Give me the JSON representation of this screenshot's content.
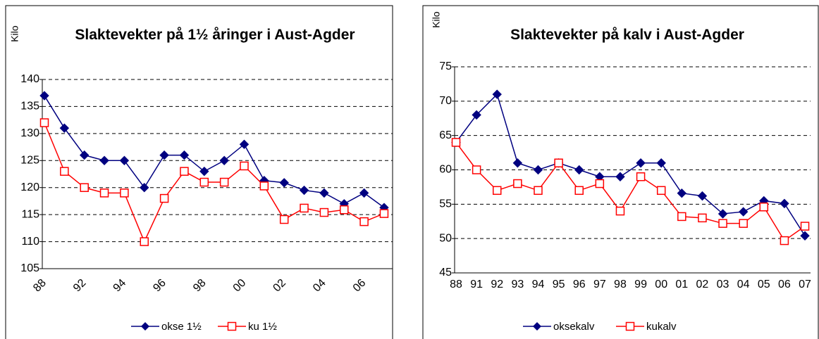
{
  "chart_data": [
    {
      "type": "line",
      "title": "Slaktevekter på 1½ åringer i Aust-Agder",
      "ylabel": "Kilo",
      "categories": [
        "88",
        null,
        "92",
        null,
        "94",
        null,
        "96",
        null,
        "98",
        null,
        "00",
        null,
        "02",
        null,
        "04",
        null,
        "06",
        null
      ],
      "series": [
        {
          "name": "okse 1½",
          "color": "#000080",
          "marker": "diamond",
          "values": [
            137,
            131,
            126,
            125,
            125,
            120,
            126,
            126,
            123,
            125,
            128,
            121.3,
            120.9,
            119.5,
            119,
            117,
            119,
            116.3
          ]
        },
        {
          "name": "ku 1½",
          "color": "#ff0000",
          "marker": "square",
          "values": [
            132,
            123,
            120,
            119,
            119,
            110,
            118,
            123,
            121,
            121,
            124,
            120.3,
            114.1,
            116.2,
            115.4,
            115.9,
            113.7,
            115.2
          ]
        }
      ],
      "ylim": [
        105,
        140
      ],
      "yticks": [
        105,
        110,
        115,
        120,
        125,
        130,
        135,
        140
      ],
      "grid": true,
      "legend": "bottom"
    },
    {
      "type": "line",
      "title": "Slaktevekter på kalv i Aust-Agder",
      "ylabel": "Kilo",
      "categories": [
        "88",
        "91",
        "92",
        "93",
        "94",
        "95",
        "96",
        "97",
        "98",
        "99",
        "00",
        "01",
        "02",
        "03",
        "04",
        "05",
        "06",
        "07"
      ],
      "series": [
        {
          "name": "oksekalv",
          "color": "#000080",
          "marker": "diamond",
          "values": [
            64,
            68,
            71,
            61,
            60,
            61,
            60,
            59,
            59,
            61,
            61,
            56.6,
            56.2,
            53.6,
            53.9,
            55.5,
            55.1,
            50.4
          ]
        },
        {
          "name": "kukalv",
          "color": "#ff0000",
          "marker": "square",
          "values": [
            64,
            60,
            57,
            58,
            57,
            61,
            57,
            58,
            54,
            59,
            57,
            53.2,
            53,
            52.2,
            52.2,
            54.6,
            49.7,
            51.8
          ]
        }
      ],
      "ylim": [
        45,
        75
      ],
      "yticks": [
        45,
        50,
        55,
        60,
        65,
        70,
        75
      ],
      "grid": true,
      "legend": "bottom"
    }
  ]
}
